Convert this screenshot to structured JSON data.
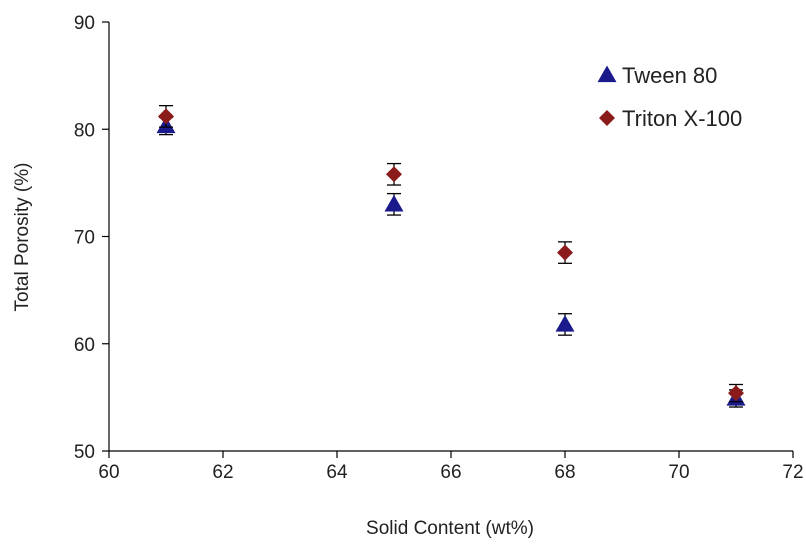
{
  "chart_data": {
    "type": "scatter",
    "title": "",
    "xlabel": "Solid Content (wt%)",
    "ylabel": "Total Porosity (%)",
    "xlim": [
      60,
      72
    ],
    "ylim": [
      50,
      90
    ],
    "xticks": [
      60,
      62,
      64,
      66,
      68,
      70,
      72
    ],
    "yticks": [
      50,
      60,
      70,
      80,
      90
    ],
    "grid": false,
    "legend_position": "top-right",
    "series": [
      {
        "name": "Tween 80",
        "marker": "triangle",
        "color": "#1a1a8c",
        "x": [
          61,
          65,
          68,
          71
        ],
        "y": [
          80.3,
          73.0,
          61.8,
          54.9
        ],
        "error": [
          0.8,
          1.0,
          1.0,
          0.8
        ]
      },
      {
        "name": "Triton X-100",
        "marker": "diamond",
        "color": "#8b1a1a",
        "x": [
          61,
          65,
          68,
          71
        ],
        "y": [
          81.2,
          75.8,
          68.5,
          55.4
        ],
        "error": [
          1.0,
          1.0,
          1.0,
          0.8
        ]
      }
    ]
  }
}
